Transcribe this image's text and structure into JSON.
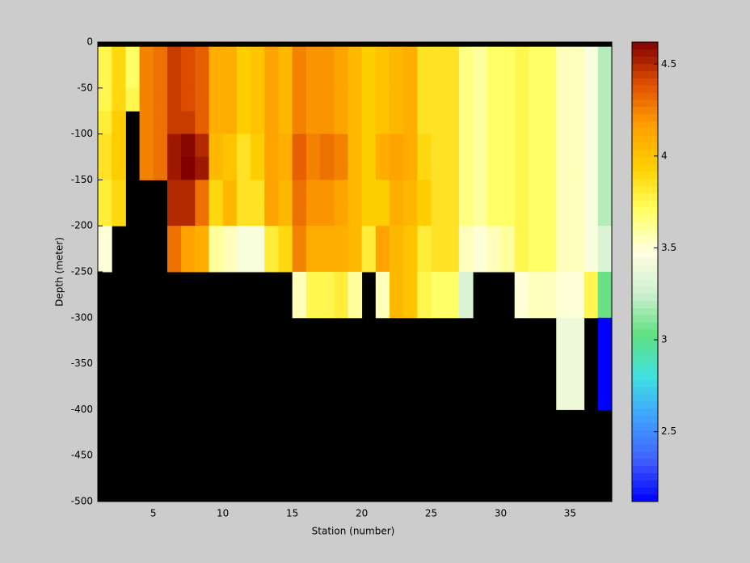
{
  "chart_data": {
    "type": "heatmap",
    "xlabel": "Station (number)",
    "ylabel": "Depth (meter)",
    "x": [
      1,
      2,
      3,
      4,
      5,
      6,
      7,
      8,
      9,
      10,
      11,
      12,
      13,
      14,
      15,
      16,
      17,
      18,
      19,
      20,
      21,
      22,
      23,
      24,
      25,
      26,
      27,
      28,
      29,
      30,
      31,
      32,
      33,
      34,
      35,
      36,
      37,
      38
    ],
    "y": [
      -5,
      -50,
      -75,
      -100,
      -125,
      -150,
      -175,
      -200,
      -250,
      -300,
      -400
    ],
    "values": [
      [
        3.75,
        3.9,
        3.7,
        4.25,
        4.3,
        4.45,
        4.4,
        4.35,
        4.1,
        4.1,
        3.95,
        4.0,
        4.15,
        4.05,
        4.25,
        4.2,
        4.2,
        4.15,
        4.05,
        3.95,
        4.0,
        4.05,
        4.1,
        3.85,
        3.85,
        3.85,
        3.65,
        3.6,
        3.7,
        3.7,
        3.75,
        3.7,
        3.7,
        3.55,
        3.55,
        3.45,
        3.2
      ],
      [
        3.75,
        3.9,
        3.75,
        4.25,
        4.3,
        4.45,
        4.4,
        4.35,
        4.1,
        4.1,
        3.95,
        4.0,
        4.15,
        4.05,
        4.25,
        4.2,
        4.2,
        4.15,
        4.05,
        3.95,
        4.0,
        4.05,
        4.1,
        3.85,
        3.85,
        3.85,
        3.65,
        3.6,
        3.7,
        3.7,
        3.75,
        3.7,
        3.7,
        3.55,
        3.55,
        3.45,
        3.2
      ],
      [
        3.8,
        3.95,
        null,
        4.25,
        4.3,
        4.45,
        4.45,
        4.35,
        4.1,
        4.1,
        3.95,
        4.0,
        4.15,
        4.05,
        4.25,
        4.2,
        4.2,
        4.15,
        4.05,
        3.95,
        4.0,
        4.05,
        4.1,
        3.85,
        3.85,
        3.85,
        3.65,
        3.6,
        3.7,
        3.7,
        3.75,
        3.7,
        3.7,
        3.55,
        3.55,
        3.45,
        3.2
      ],
      [
        3.85,
        3.95,
        null,
        4.25,
        4.3,
        4.55,
        4.6,
        4.5,
        4.05,
        4.0,
        3.85,
        3.95,
        4.15,
        4.1,
        4.35,
        4.25,
        4.3,
        4.25,
        4.05,
        3.95,
        4.1,
        4.15,
        4.1,
        3.9,
        3.85,
        3.85,
        3.65,
        3.6,
        3.7,
        3.7,
        3.75,
        3.7,
        3.7,
        3.55,
        3.55,
        3.45,
        3.2
      ],
      [
        3.85,
        3.95,
        null,
        4.25,
        4.3,
        4.55,
        4.62,
        4.55,
        4.05,
        4.0,
        3.85,
        3.95,
        4.15,
        4.1,
        4.35,
        4.25,
        4.3,
        4.25,
        4.05,
        3.95,
        4.1,
        4.15,
        4.1,
        3.9,
        3.85,
        3.85,
        3.65,
        3.6,
        3.7,
        3.7,
        3.75,
        3.7,
        3.7,
        3.55,
        3.55,
        3.45,
        3.2
      ],
      [
        3.8,
        3.9,
        null,
        null,
        null,
        4.5,
        4.5,
        4.3,
        3.9,
        4.05,
        3.85,
        3.85,
        4.15,
        4.05,
        4.3,
        4.2,
        4.2,
        4.15,
        4.05,
        3.95,
        3.95,
        4.1,
        4.05,
        3.95,
        3.85,
        3.85,
        3.65,
        3.6,
        3.7,
        3.7,
        3.75,
        3.7,
        3.7,
        3.55,
        3.55,
        3.45,
        3.2
      ],
      [
        3.8,
        3.9,
        null,
        null,
        null,
        4.5,
        4.5,
        4.3,
        3.9,
        4.05,
        3.85,
        3.85,
        4.15,
        4.05,
        4.3,
        4.2,
        4.2,
        4.15,
        4.05,
        3.95,
        3.95,
        4.1,
        4.05,
        3.95,
        3.85,
        3.85,
        3.65,
        3.6,
        3.7,
        3.7,
        3.75,
        3.7,
        3.7,
        3.55,
        3.55,
        3.45,
        3.2
      ],
      [
        3.5,
        null,
        null,
        null,
        null,
        4.3,
        4.15,
        4.1,
        3.6,
        3.55,
        3.45,
        3.45,
        3.8,
        3.9,
        4.25,
        4.1,
        4.1,
        4.1,
        4.05,
        3.8,
        4.15,
        4.05,
        4.0,
        3.8,
        3.85,
        3.85,
        3.55,
        3.5,
        3.55,
        3.6,
        3.75,
        3.7,
        3.7,
        3.55,
        3.55,
        3.45,
        3.3
      ],
      [
        null,
        null,
        null,
        null,
        null,
        null,
        null,
        null,
        null,
        null,
        null,
        null,
        null,
        null,
        3.55,
        3.75,
        3.75,
        3.8,
        3.6,
        null,
        3.55,
        4.05,
        4.0,
        3.75,
        3.7,
        3.7,
        3.3,
        null,
        null,
        null,
        3.5,
        3.55,
        3.55,
        3.5,
        3.5,
        3.75,
        3.05
      ],
      [
        null,
        null,
        null,
        null,
        null,
        null,
        null,
        null,
        null,
        null,
        null,
        null,
        null,
        null,
        null,
        null,
        null,
        null,
        null,
        null,
        null,
        null,
        null,
        null,
        null,
        null,
        null,
        null,
        null,
        null,
        null,
        null,
        null,
        3.4,
        3.4,
        null,
        2.12
      ]
    ],
    "xlim": [
      1,
      38
    ],
    "xticks": [
      5,
      10,
      15,
      20,
      25,
      30,
      35
    ],
    "ylim": [
      -500,
      0
    ],
    "yticks": [
      0,
      -50,
      -100,
      -150,
      -200,
      -250,
      -300,
      -350,
      -400,
      -450,
      -500
    ],
    "clim": [
      2.12,
      4.62
    ],
    "cticks": [
      2.5,
      3,
      3.5,
      4,
      4.5
    ],
    "colormap": [
      "#0000ff",
      "#4060ff",
      "#40a0ff",
      "#40e0e0",
      "#60e080",
      "#d0f0d0",
      "#ffffe0",
      "#ffff60",
      "#ffd000",
      "#ffa000",
      "#e05000",
      "#800000"
    ],
    "missing_color": "#000000"
  }
}
